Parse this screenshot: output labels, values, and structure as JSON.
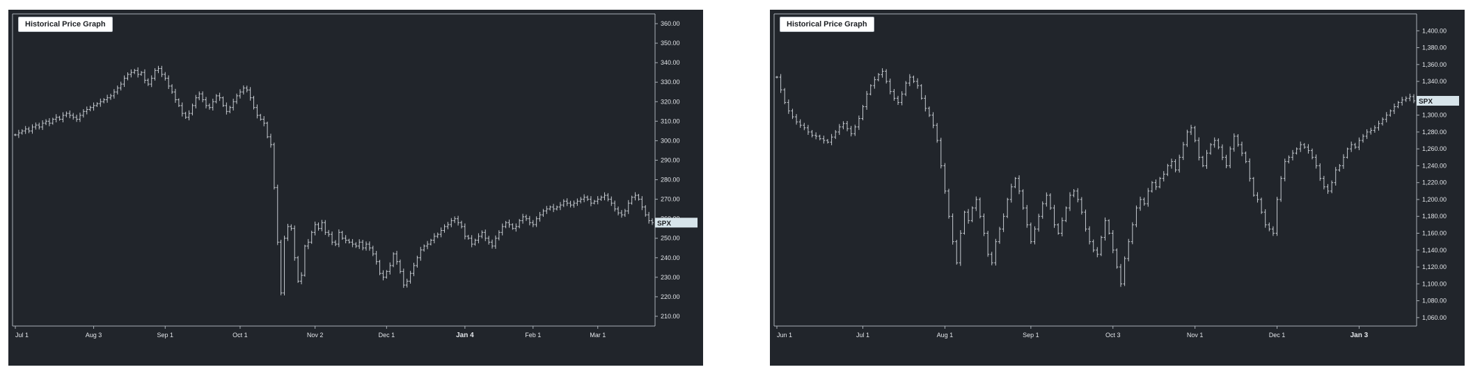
{
  "colors": {
    "background": "#21252b",
    "bars": "#c8cdd3",
    "axis": "#aab1b8",
    "ticker_badge": "#d7e4ea"
  },
  "chart_data": [
    {
      "type": "ohlc",
      "title": "Historical Price Graph",
      "ticker": "SPX",
      "last_price": 258,
      "ylim": [
        205,
        365
      ],
      "yticks": [
        210,
        220,
        230,
        240,
        250,
        260,
        270,
        280,
        290,
        300,
        310,
        320,
        330,
        340,
        350,
        360
      ],
      "ytick_labels": [
        "210.00",
        "220.00",
        "230.00",
        "240.00",
        "250.00",
        "260.00",
        "270.00",
        "280.00",
        "290.00",
        "300.00",
        "310.00",
        "320.00",
        "330.00",
        "340.00",
        "350.00",
        "360.00"
      ],
      "xlabels": [
        {
          "label": "Jul 1",
          "index": 0,
          "bold": false
        },
        {
          "label": "Aug 3",
          "index": 23,
          "bold": false
        },
        {
          "label": "Sep 1",
          "index": 44,
          "bold": false
        },
        {
          "label": "Oct 1",
          "index": 66,
          "bold": false
        },
        {
          "label": "Nov 2",
          "index": 88,
          "bold": false
        },
        {
          "label": "Dec 1",
          "index": 109,
          "bold": false
        },
        {
          "label": "Jan 4",
          "index": 132,
          "bold": true
        },
        {
          "label": "Feb 1",
          "index": 152,
          "bold": false
        },
        {
          "label": "Mar 1",
          "index": 171,
          "bold": false
        }
      ],
      "closes": [
        303,
        304,
        305,
        306,
        305,
        307,
        308,
        307,
        309,
        310,
        309,
        311,
        312,
        311,
        313,
        314,
        313,
        312,
        311,
        313,
        315,
        316,
        317,
        318,
        319,
        320,
        321,
        322,
        323,
        325,
        327,
        329,
        332,
        334,
        335,
        336,
        334,
        335,
        331,
        329,
        332,
        336,
        337,
        334,
        332,
        328,
        325,
        321,
        318,
        314,
        312,
        314,
        318,
        322,
        324,
        321,
        318,
        317,
        320,
        323,
        322,
        318,
        315,
        317,
        320,
        323,
        325,
        327,
        326,
        322,
        317,
        313,
        311,
        309,
        302,
        298,
        276,
        248,
        222,
        250,
        256,
        255,
        240,
        228,
        231,
        246,
        248,
        253,
        257,
        255,
        258,
        253,
        252,
        248,
        247,
        253,
        250,
        249,
        248,
        247,
        246,
        248,
        245,
        247,
        245,
        242,
        238,
        232,
        230,
        233,
        236,
        242,
        238,
        233,
        226,
        228,
        232,
        236,
        240,
        244,
        246,
        247,
        249,
        251,
        252,
        254,
        256,
        257,
        259,
        260,
        258,
        256,
        251,
        250,
        247,
        249,
        251,
        253,
        250,
        248,
        246,
        250,
        253,
        256,
        258,
        257,
        255,
        256,
        259,
        261,
        260,
        258,
        257,
        260,
        262,
        264,
        265,
        266,
        265,
        266,
        267,
        269,
        268,
        267,
        268,
        269,
        270,
        271,
        270,
        268,
        269,
        270,
        271,
        272,
        270,
        268,
        265,
        263,
        262,
        264,
        268,
        271,
        272,
        270,
        266,
        262,
        259,
        258
      ]
    },
    {
      "type": "ohlc",
      "title": "Historical Price Graph",
      "ticker": "SPX",
      "last_price": 1317,
      "ylim": [
        1050,
        1420
      ],
      "yticks": [
        1060,
        1080,
        1100,
        1120,
        1140,
        1160,
        1180,
        1200,
        1220,
        1240,
        1260,
        1280,
        1300,
        1320,
        1340,
        1360,
        1380,
        1400
      ],
      "ytick_labels": [
        "1,060.00",
        "1,080.00",
        "1,100.00",
        "1,120.00",
        "1,140.00",
        "1,160.00",
        "1,180.00",
        "1,200.00",
        "1,220.00",
        "1,240.00",
        "1,260.00",
        "1,280.00",
        "1,300.00",
        "1,320.00",
        "1,340.00",
        "1,360.00",
        "1,380.00",
        "1,400.00"
      ],
      "xlabels": [
        {
          "label": "Jun 1",
          "index": 0,
          "bold": false
        },
        {
          "label": "Jul 1",
          "index": 22,
          "bold": false
        },
        {
          "label": "Aug 1",
          "index": 43,
          "bold": false
        },
        {
          "label": "Sep 1",
          "index": 65,
          "bold": false
        },
        {
          "label": "Oct 3",
          "index": 86,
          "bold": false
        },
        {
          "label": "Nov 1",
          "index": 107,
          "bold": false
        },
        {
          "label": "Dec 1",
          "index": 128,
          "bold": false
        },
        {
          "label": "Jan 3",
          "index": 149,
          "bold": true
        }
      ],
      "closes": [
        1345,
        1330,
        1315,
        1305,
        1298,
        1292,
        1288,
        1285,
        1280,
        1276,
        1275,
        1272,
        1270,
        1268,
        1274,
        1280,
        1286,
        1290,
        1284,
        1278,
        1286,
        1296,
        1310,
        1325,
        1335,
        1342,
        1348,
        1352,
        1340,
        1328,
        1320,
        1315,
        1325,
        1338,
        1345,
        1340,
        1335,
        1320,
        1308,
        1300,
        1288,
        1270,
        1240,
        1210,
        1180,
        1150,
        1125,
        1160,
        1185,
        1175,
        1190,
        1200,
        1180,
        1160,
        1135,
        1125,
        1150,
        1165,
        1180,
        1200,
        1215,
        1225,
        1210,
        1190,
        1170,
        1150,
        1165,
        1180,
        1195,
        1205,
        1190,
        1170,
        1160,
        1175,
        1190,
        1205,
        1210,
        1200,
        1185,
        1165,
        1150,
        1140,
        1135,
        1155,
        1175,
        1160,
        1140,
        1120,
        1100,
        1130,
        1150,
        1170,
        1190,
        1200,
        1195,
        1210,
        1220,
        1215,
        1225,
        1230,
        1240,
        1245,
        1235,
        1250,
        1265,
        1280,
        1285,
        1270,
        1250,
        1240,
        1255,
        1265,
        1270,
        1262,
        1250,
        1240,
        1260,
        1275,
        1265,
        1255,
        1245,
        1225,
        1205,
        1200,
        1185,
        1170,
        1165,
        1160,
        1200,
        1225,
        1245,
        1250,
        1255,
        1260,
        1265,
        1262,
        1258,
        1250,
        1240,
        1225,
        1215,
        1210,
        1220,
        1235,
        1240,
        1250,
        1260,
        1265,
        1262,
        1270,
        1275,
        1280,
        1282,
        1285,
        1290,
        1295,
        1300,
        1305,
        1310,
        1315,
        1318,
        1320,
        1322,
        1317
      ]
    }
  ]
}
